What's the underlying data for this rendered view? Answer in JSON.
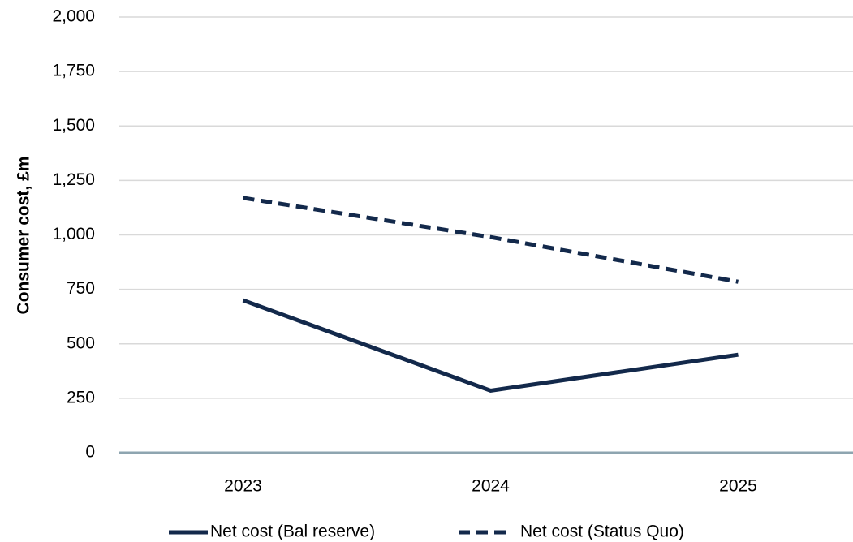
{
  "chart_data": {
    "type": "line",
    "y_label": "Consumer cost, £m",
    "categories": [
      "2023",
      "2024",
      "2025"
    ],
    "series": [
      {
        "name": "Net cost (Bal reserve)",
        "color": "#13294b",
        "dash": "solid",
        "values": [
          700,
          285,
          450
        ]
      },
      {
        "name": "Net cost (Status Quo)",
        "color": "#13294b",
        "dash": "dashed",
        "values": [
          1170,
          990,
          785
        ]
      }
    ],
    "ylim": [
      0,
      2000
    ],
    "yticks": [
      0,
      250,
      500,
      750,
      {
        "value": 1000,
        "label": "1,000"
      },
      {
        "value": 1250,
        "label": "1,250"
      },
      {
        "value": 1500,
        "label": "1,500"
      },
      {
        "value": 1750,
        "label": "1,750"
      },
      {
        "value": 2000,
        "label": "2,000"
      }
    ],
    "grid": true,
    "legend": "bottom"
  }
}
